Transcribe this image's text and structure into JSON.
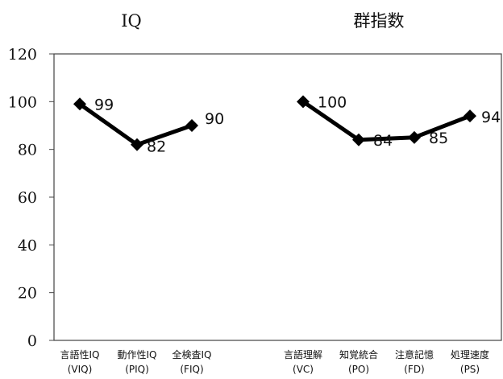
{
  "chart_data": {
    "type": "line",
    "ylim": [
      0,
      120
    ],
    "yticks": [
      "0",
      "20",
      "40",
      "60",
      "80",
      "100",
      "120"
    ],
    "grid": false,
    "panels": [
      {
        "title": "IQ",
        "categories": [
          {
            "name": "言語性IQ",
            "abbr": "(VIQ)"
          },
          {
            "name": "動作性IQ",
            "abbr": "(PIQ)"
          },
          {
            "name": "全検査IQ",
            "abbr": "(FIQ)"
          }
        ],
        "values": [
          99,
          82,
          90
        ]
      },
      {
        "title": "群指数",
        "categories": [
          {
            "name": "言語理解",
            "abbr": "(VC)"
          },
          {
            "name": "知覚統合",
            "abbr": "(PO)"
          },
          {
            "name": "注意記憶",
            "abbr": "(FD)"
          },
          {
            "name": "処理速度",
            "abbr": "(PS)"
          }
        ],
        "values": [
          100,
          84,
          85,
          94
        ]
      }
    ],
    "colors": {
      "line": "#000000",
      "axis": "#444444"
    }
  }
}
